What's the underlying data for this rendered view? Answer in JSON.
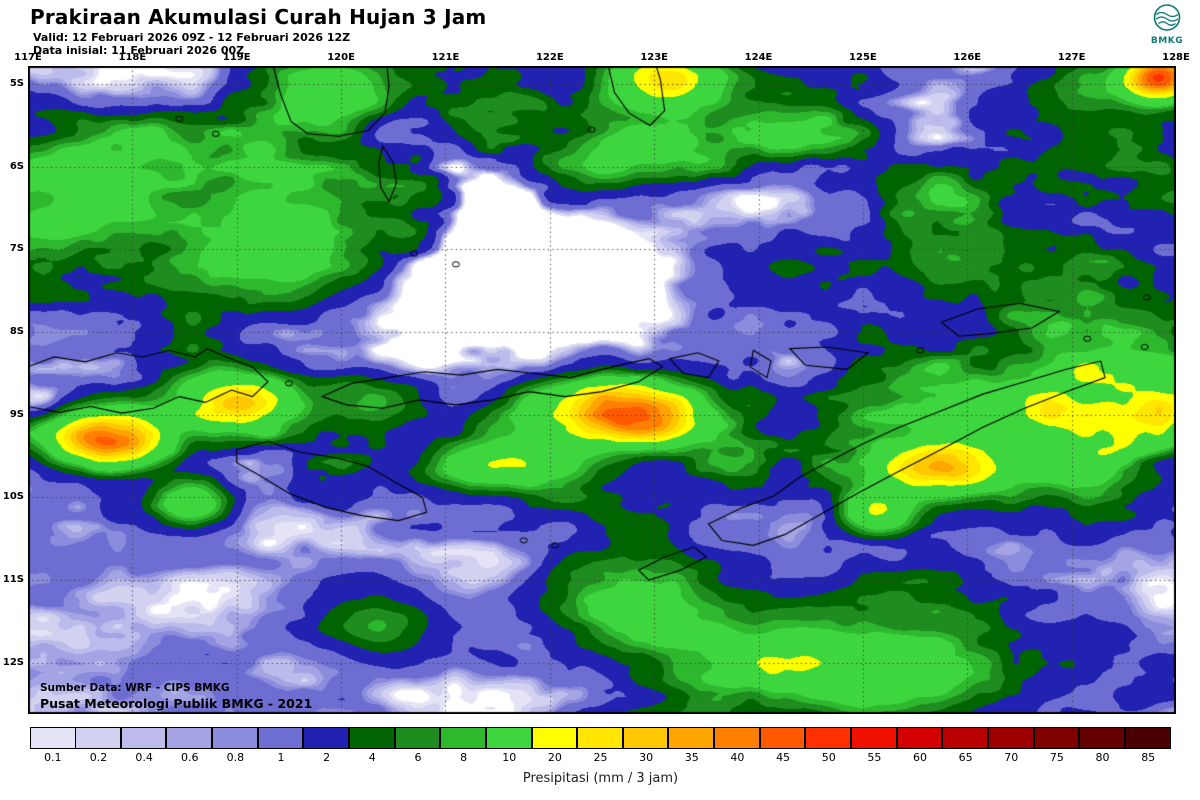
{
  "header": {
    "title": "Prakiraan Akumulasi Curah Hujan 3 Jam",
    "valid": "Valid: 12 Februari 2026 09Z - 12 Februari 2026 12Z",
    "init": "Data inisial: 11 Februari 2026 00Z",
    "logo_label": "BMKG",
    "logo_color": "#0d7b78"
  },
  "map": {
    "lon_labels": [
      "117E",
      "118E",
      "119E",
      "120E",
      "121E",
      "122E",
      "123E",
      "124E",
      "125E",
      "126E",
      "127E",
      "128E"
    ],
    "lat_labels": [
      "5S",
      "6S",
      "7S",
      "8S",
      "9S",
      "10S",
      "11S",
      "12S"
    ],
    "lon_range": [
      117,
      128
    ],
    "lat_range": [
      4.78,
      12.62
    ],
    "source_line1": "Sumber Data: WRF - CIPS BMKG",
    "source_line2": "Pusat Meteorologi Publik BMKG - 2021",
    "rain_bands": [
      {
        "lat": 9.15,
        "sigma": 0.95,
        "amp": 0.95
      },
      {
        "lat": 5.9,
        "sigma": 1.1,
        "amp": 0.7
      },
      {
        "lat": 12.1,
        "sigma": 1.05,
        "amp": 0.6,
        "lon": 124.5,
        "lon_sigma": 3.6
      },
      {
        "lat": 7.2,
        "sigma": 0.85,
        "amp": 0.5,
        "lon": 118.2,
        "lon_sigma": 2.2
      },
      {
        "lat": 7.1,
        "sigma": 1.4,
        "amp": 0.45,
        "lon": 127.4,
        "lon_sigma": 1.7
      }
    ],
    "rain_cells": [
      [
        117.75,
        9.3,
        50,
        0.5,
        0.3
      ],
      [
        118.95,
        8.85,
        30,
        0.55,
        0.32
      ],
      [
        118.55,
        10.05,
        20,
        0.33,
        0.24
      ],
      [
        121.45,
        9.62,
        20,
        0.6,
        0.22
      ],
      [
        122.55,
        8.9,
        26,
        0.75,
        0.32
      ],
      [
        122.95,
        9.1,
        20,
        0.4,
        0.28
      ],
      [
        125.75,
        9.65,
        34,
        0.6,
        0.33
      ],
      [
        125.15,
        10.15,
        20,
        0.33,
        0.26
      ],
      [
        123.1,
        4.95,
        30,
        0.55,
        0.33
      ],
      [
        127.85,
        4.95,
        48,
        0.3,
        0.25
      ],
      [
        120.25,
        8.8,
        10,
        0.5,
        0.3
      ],
      [
        122.1,
        9.35,
        12,
        0.9,
        0.5
      ],
      [
        126.4,
        9.1,
        10,
        1.0,
        0.55
      ],
      [
        127.5,
        9.0,
        10,
        0.8,
        0.5
      ],
      [
        124.2,
        11.9,
        9,
        1.1,
        0.7
      ],
      [
        125.3,
        12.2,
        9,
        1.0,
        0.6
      ],
      [
        122.8,
        11.3,
        8,
        0.8,
        0.55
      ],
      [
        120.3,
        11.5,
        7,
        0.6,
        0.45
      ],
      [
        119.3,
        6.9,
        10,
        0.9,
        0.6
      ],
      [
        117.6,
        6.1,
        10,
        0.8,
        0.6
      ],
      [
        119.8,
        5.1,
        9,
        0.6,
        0.4
      ],
      [
        122.6,
        5.9,
        9,
        0.8,
        0.5
      ],
      [
        127.3,
        5.6,
        8,
        0.7,
        0.5
      ],
      [
        121.35,
        5.9,
        -5,
        0.9,
        1.1
      ],
      [
        121.7,
        7.5,
        -4,
        1.3,
        0.9
      ]
    ]
  },
  "legend": {
    "caption": "Presipitasi (mm / 3 jam)",
    "entries": [
      {
        "value": "0.1",
        "color": "#e4e4f6"
      },
      {
        "value": "0.2",
        "color": "#d2d2f0"
      },
      {
        "value": "0.4",
        "color": "#bcbcec"
      },
      {
        "value": "0.6",
        "color": "#a4a4e4"
      },
      {
        "value": "0.8",
        "color": "#8c8cdc"
      },
      {
        "value": "1",
        "color": "#6e6ed2"
      },
      {
        "value": "2",
        "color": "#2222b2"
      },
      {
        "value": "4",
        "color": "#006400"
      },
      {
        "value": "6",
        "color": "#1e8c1e"
      },
      {
        "value": "8",
        "color": "#2eb82e"
      },
      {
        "value": "10",
        "color": "#3ed63e"
      },
      {
        "value": "20",
        "color": "#ffff00"
      },
      {
        "value": "25",
        "color": "#ffe600"
      },
      {
        "value": "30",
        "color": "#ffc800"
      },
      {
        "value": "35",
        "color": "#ffa500"
      },
      {
        "value": "40",
        "color": "#ff8000"
      },
      {
        "value": "45",
        "color": "#ff5a00"
      },
      {
        "value": "50",
        "color": "#ff3000"
      },
      {
        "value": "55",
        "color": "#f01000"
      },
      {
        "value": "60",
        "color": "#d40000"
      },
      {
        "value": "65",
        "color": "#b80000"
      },
      {
        "value": "70",
        "color": "#9c0000"
      },
      {
        "value": "75",
        "color": "#800000"
      },
      {
        "value": "80",
        "color": "#640000"
      },
      {
        "value": "85",
        "color": "#4a0000"
      }
    ]
  }
}
